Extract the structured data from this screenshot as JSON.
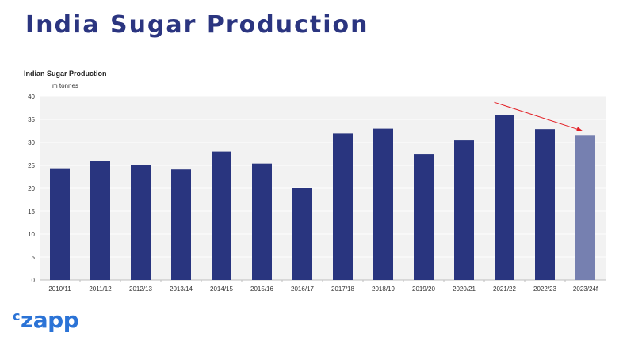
{
  "header": {
    "title": "India Sugar Production"
  },
  "logo": {
    "prefix": "c",
    "text": "zapp"
  },
  "chart_data": {
    "type": "bar",
    "title": "Indian Sugar Production",
    "ylabel": "m tonnes",
    "xlabel": "",
    "ylim": [
      0,
      40
    ],
    "yticks": [
      0,
      5,
      10,
      15,
      20,
      25,
      30,
      35,
      40
    ],
    "categories": [
      "2010/11",
      "2011/12",
      "2012/13",
      "2013/14",
      "2014/15",
      "2015/16",
      "2016/17",
      "2017/18",
      "2018/19",
      "2019/20",
      "2020/21",
      "2021/22",
      "2022/23",
      "2023/24f"
    ],
    "values": [
      24.2,
      26.0,
      25.1,
      24.1,
      28.0,
      25.4,
      20.0,
      32.0,
      33.0,
      27.4,
      30.5,
      36.0,
      32.9,
      31.5
    ],
    "forecast_index": 13,
    "bar_color": "#29357f",
    "forecast_color": "#7680b0",
    "trend_arrow": {
      "from_category": "2021/22",
      "to_category": "2023/24f",
      "color": "#e31e24"
    },
    "grid": true,
    "legend": "none",
    "background_color": "#f2f2f2"
  }
}
